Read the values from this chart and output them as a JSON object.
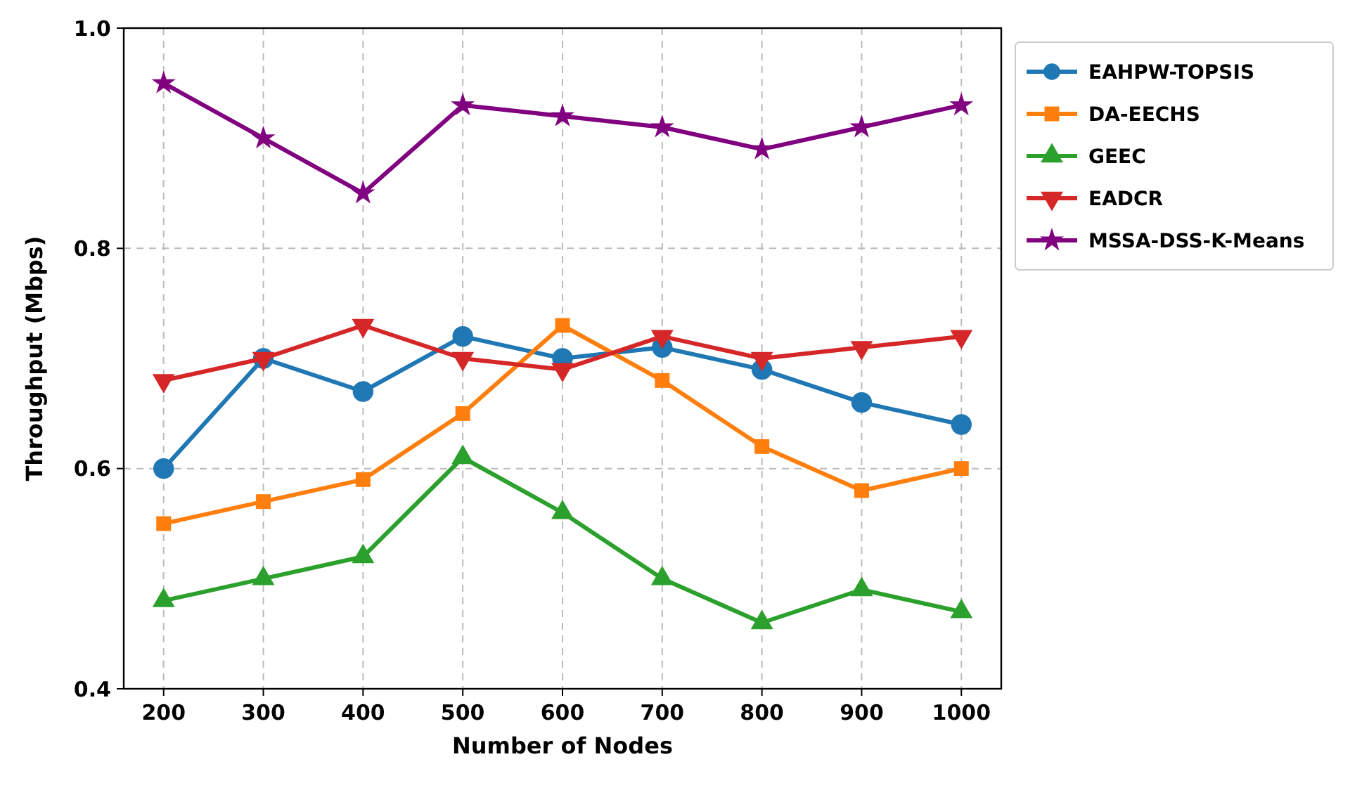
{
  "chart_data": {
    "type": "line",
    "xlabel": "Number of Nodes",
    "ylabel": "Throughput (Mbps)",
    "x": [
      200,
      300,
      400,
      500,
      600,
      700,
      800,
      900,
      1000
    ],
    "xlim": [
      160,
      1040
    ],
    "xticks": [
      200,
      300,
      400,
      500,
      600,
      700,
      800,
      900,
      1000
    ],
    "ylim": [
      0.4,
      1.0
    ],
    "yticks": [
      {
        "value": 0.4,
        "label": "0.4"
      },
      {
        "value": 0.6,
        "label": "0.6"
      },
      {
        "value": 0.8,
        "label": "0.8"
      },
      {
        "value": 1.0,
        "label": "1.0"
      }
    ],
    "grid": true,
    "legend": "right",
    "line_style": "solid",
    "series": [
      {
        "name": "EAHPW-TOPSIS",
        "color": "#1f77b4",
        "marker": "circle",
        "values": [
          0.6,
          0.7,
          0.67,
          0.72,
          0.7,
          0.71,
          0.69,
          0.66,
          0.64
        ]
      },
      {
        "name": "DA-EECHS",
        "color": "#ff7f0e",
        "marker": "square",
        "values": [
          0.55,
          0.57,
          0.59,
          0.65,
          0.73,
          0.68,
          0.62,
          0.58,
          0.6
        ]
      },
      {
        "name": "GEEC",
        "color": "#2ca02c",
        "marker": "triangle",
        "values": [
          0.48,
          0.5,
          0.52,
          0.61,
          0.56,
          0.5,
          0.46,
          0.49,
          0.47
        ]
      },
      {
        "name": "EADCR",
        "color": "#d62728",
        "marker": "triangle-down",
        "values": [
          0.68,
          0.7,
          0.73,
          0.7,
          0.69,
          0.72,
          0.7,
          0.71,
          0.72
        ]
      },
      {
        "name": "MSSA-DSS-K-Means",
        "color": "#800080",
        "marker": "star",
        "values": [
          0.95,
          0.9,
          0.85,
          0.93,
          0.92,
          0.91,
          0.89,
          0.91,
          0.93
        ]
      }
    ]
  }
}
